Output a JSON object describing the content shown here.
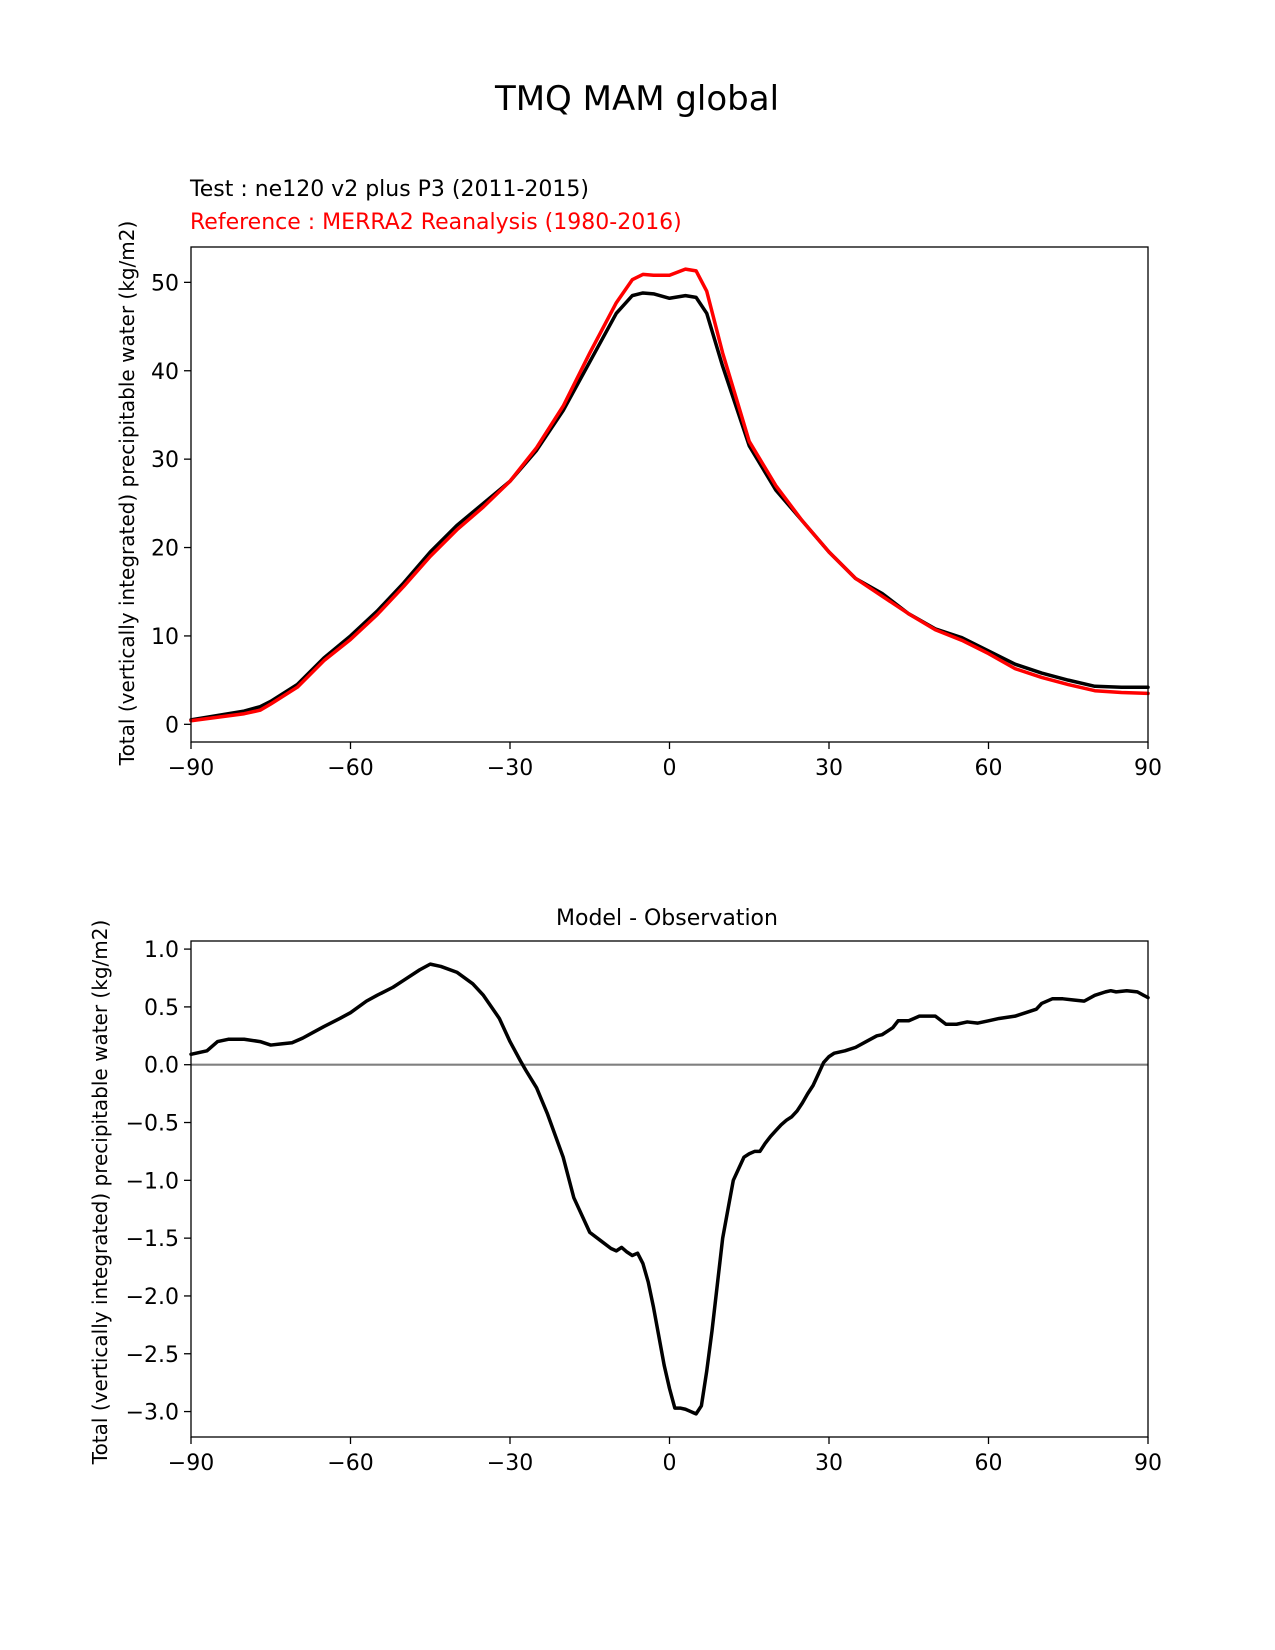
{
  "figure": {
    "title": "TMQ MAM global"
  },
  "chart_data": [
    {
      "type": "line",
      "test_label": "Test : ne120 v2 plus P3 (2011-2015)",
      "reference_label": "Reference : MERRA2 Reanalysis (1980-2016)",
      "ylabel": "Total (vertically integrated) precipitable water (kg/m2)",
      "xlabel": "",
      "xlim": [
        -90,
        90
      ],
      "ylim": [
        -2,
        54
      ],
      "xticks": [
        -90,
        -60,
        -30,
        0,
        30,
        60,
        90
      ],
      "xtick_labels": [
        "−90",
        "−60",
        "−30",
        "0",
        "30",
        "60",
        "90"
      ],
      "yticks": [
        0,
        10,
        20,
        30,
        40,
        50
      ],
      "ytick_labels": [
        "0",
        "10",
        "20",
        "30",
        "40",
        "50"
      ],
      "x": [
        -90,
        -85,
        -80,
        -77,
        -75,
        -70,
        -65,
        -60,
        -55,
        -50,
        -45,
        -40,
        -35,
        -30,
        -25,
        -20,
        -15,
        -10,
        -7,
        -5,
        -3,
        0,
        3,
        5,
        7,
        10,
        15,
        20,
        25,
        30,
        35,
        40,
        45,
        50,
        55,
        60,
        65,
        70,
        75,
        80,
        85,
        90
      ],
      "series": [
        {
          "name": "Test",
          "color": "#000000",
          "values": [
            0.5,
            1.0,
            1.5,
            2.0,
            2.6,
            4.5,
            7.5,
            10.0,
            12.8,
            16.0,
            19.5,
            22.5,
            25.0,
            27.5,
            31.0,
            35.5,
            41.0,
            46.5,
            48.5,
            48.8,
            48.7,
            48.2,
            48.5,
            48.3,
            46.5,
            40.5,
            31.5,
            26.5,
            23.0,
            19.5,
            16.5,
            14.8,
            12.5,
            10.8,
            9.8,
            8.3,
            6.8,
            5.8,
            5.0,
            4.3,
            4.2,
            4.2
          ]
        },
        {
          "name": "Reference",
          "color": "#ff0000",
          "values": [
            0.4,
            0.8,
            1.2,
            1.6,
            2.3,
            4.2,
            7.2,
            9.6,
            12.4,
            15.6,
            19.0,
            22.0,
            24.6,
            27.5,
            31.3,
            36.0,
            42.0,
            47.7,
            50.3,
            50.9,
            50.8,
            50.8,
            51.5,
            51.3,
            49.0,
            42.0,
            32.0,
            27.0,
            23.0,
            19.5,
            16.5,
            14.5,
            12.5,
            10.7,
            9.5,
            8.0,
            6.3,
            5.3,
            4.5,
            3.8,
            3.6,
            3.5
          ]
        }
      ]
    },
    {
      "type": "line",
      "title": "Model - Observation",
      "ylabel": "Total (vertically integrated) precipitable water (kg/m2)",
      "xlabel": "",
      "xlim": [
        -90,
        90
      ],
      "ylim": [
        -3.22,
        1.07
      ],
      "xticks": [
        -90,
        -60,
        -30,
        0,
        30,
        60,
        90
      ],
      "xtick_labels": [
        "−90",
        "−60",
        "−30",
        "0",
        "30",
        "60",
        "90"
      ],
      "yticks": [
        1.0,
        0.5,
        0.0,
        -0.5,
        -1.0,
        -1.5,
        -2.0,
        -2.5,
        -3.0
      ],
      "ytick_labels": [
        "1.0",
        "0.5",
        "0.0",
        "−0.5",
        "−1.0",
        "−1.5",
        "−2.0",
        "−2.5",
        "−3.0"
      ],
      "zero_line_color": "#808080",
      "x": [
        -90,
        -87,
        -85,
        -83,
        -80,
        -77,
        -75,
        -73,
        -71,
        -69,
        -67,
        -65,
        -62,
        -60,
        -57,
        -55,
        -52,
        -50,
        -47,
        -45,
        -43,
        -40,
        -37,
        -35,
        -32,
        -30,
        -28,
        -27,
        -25,
        -23,
        -20,
        -18,
        -15,
        -13,
        -11,
        -10,
        -9,
        -8,
        -7,
        -6,
        -5,
        -4,
        -3,
        -2,
        -1,
        0,
        1,
        2,
        3,
        4,
        4.5,
        5,
        6,
        7,
        8,
        9,
        10,
        11,
        12,
        13,
        14,
        15,
        16,
        17,
        18,
        19,
        20,
        21,
        22,
        23,
        24,
        25,
        26,
        27,
        28,
        29,
        30,
        31,
        33,
        35,
        37,
        39,
        40,
        42,
        43,
        45,
        47,
        50,
        52,
        54,
        56,
        58,
        60,
        62,
        65,
        67,
        69,
        70,
        72,
        74,
        76,
        78,
        80,
        82,
        83,
        84,
        86,
        88,
        90
      ],
      "series": [
        {
          "name": "Model - Observation",
          "color": "#000000",
          "values": [
            0.09,
            0.12,
            0.2,
            0.22,
            0.22,
            0.2,
            0.17,
            0.18,
            0.19,
            0.23,
            0.28,
            0.33,
            0.4,
            0.45,
            0.55,
            0.6,
            0.67,
            0.73,
            0.82,
            0.87,
            0.85,
            0.8,
            0.7,
            0.6,
            0.4,
            0.2,
            0.03,
            -0.05,
            -0.2,
            -0.42,
            -0.8,
            -1.15,
            -1.45,
            -1.52,
            -1.59,
            -1.61,
            -1.58,
            -1.62,
            -1.65,
            -1.63,
            -1.72,
            -1.88,
            -2.1,
            -2.35,
            -2.6,
            -2.8,
            -2.97,
            -2.97,
            -2.98,
            -3.0,
            -3.01,
            -3.02,
            -2.95,
            -2.65,
            -2.3,
            -1.9,
            -1.5,
            -1.25,
            -1.0,
            -0.9,
            -0.8,
            -0.77,
            -0.75,
            -0.75,
            -0.68,
            -0.62,
            -0.57,
            -0.52,
            -0.48,
            -0.45,
            -0.4,
            -0.33,
            -0.25,
            -0.18,
            -0.08,
            0.02,
            0.07,
            0.1,
            0.12,
            0.15,
            0.2,
            0.25,
            0.26,
            0.32,
            0.38,
            0.38,
            0.42,
            0.42,
            0.35,
            0.35,
            0.37,
            0.36,
            0.38,
            0.4,
            0.42,
            0.45,
            0.48,
            0.53,
            0.57,
            0.57,
            0.56,
            0.55,
            0.6,
            0.63,
            0.64,
            0.63,
            0.64,
            0.63,
            0.58
          ]
        }
      ]
    }
  ]
}
